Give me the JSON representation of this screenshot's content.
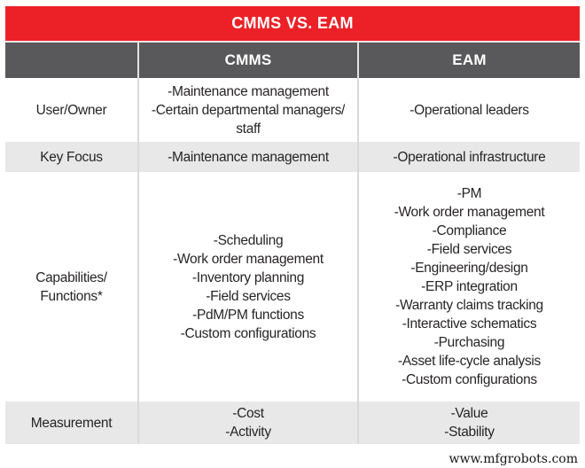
{
  "title": "CMMS VS. EAM",
  "columns": {
    "cmms": "CMMS",
    "eam": "EAM"
  },
  "rows": [
    {
      "label": [
        "User/Owner"
      ],
      "cmms": [
        "-Maintenance management",
        "-Certain departmental managers/",
        "staff"
      ],
      "eam": [
        "-Operational leaders"
      ]
    },
    {
      "label": [
        "Key Focus"
      ],
      "cmms": [
        "-Maintenance management"
      ],
      "eam": [
        "-Operational infrastructure"
      ]
    },
    {
      "label": [
        "Capabilities/",
        "Functions*"
      ],
      "cmms": [
        "-Scheduling",
        "-Work order management",
        "-Inventory planning",
        "-Field services",
        "-PdM/PM functions",
        "-Custom configurations"
      ],
      "eam": [
        "-PM",
        "-Work order management",
        "-Compliance",
        "-Field services",
        "-Engineering/design",
        "-ERP integration",
        "-Warranty claims tracking",
        "-Interactive schematics",
        "-Purchasing",
        "-Asset life-cycle analysis",
        "-Custom configurations"
      ]
    },
    {
      "label": [
        "Measurement"
      ],
      "cmms": [
        "-Cost",
        "-Activity"
      ],
      "eam": [
        "-Value",
        "-Stability"
      ]
    }
  ],
  "footer": {
    "text": "www.mfgrobots.com"
  },
  "colors": {
    "banner_red": "#EC2127",
    "header_gray": "#59595B",
    "stripe_gray": "#E8E8E9",
    "text_dark": "#272425",
    "separator": "#D9D9D9"
  }
}
